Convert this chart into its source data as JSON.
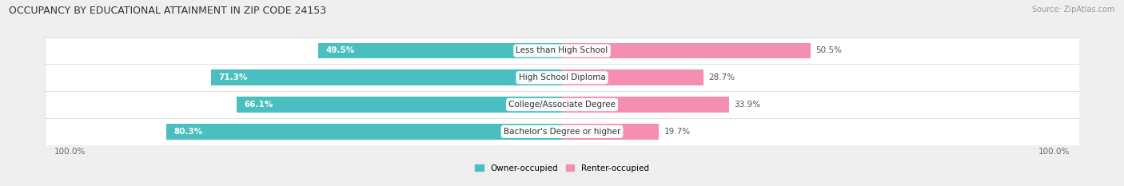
{
  "title": "OCCUPANCY BY EDUCATIONAL ATTAINMENT IN ZIP CODE 24153",
  "source": "Source: ZipAtlas.com",
  "categories": [
    "Less than High School",
    "High School Diploma",
    "College/Associate Degree",
    "Bachelor's Degree or higher"
  ],
  "owner_pct": [
    49.5,
    71.3,
    66.1,
    80.3
  ],
  "renter_pct": [
    50.5,
    28.7,
    33.9,
    19.7
  ],
  "owner_color": "#4bbfbf",
  "renter_color": "#f48fb1",
  "bg_color": "#efefef",
  "row_bg_color": "#ffffff",
  "row_sep_color": "#d8d8d8",
  "bar_height": 0.58,
  "title_fontsize": 9,
  "label_fontsize": 7.5,
  "pct_fontsize": 7.5,
  "tick_fontsize": 7.5,
  "source_fontsize": 7,
  "legend_fontsize": 7.5
}
